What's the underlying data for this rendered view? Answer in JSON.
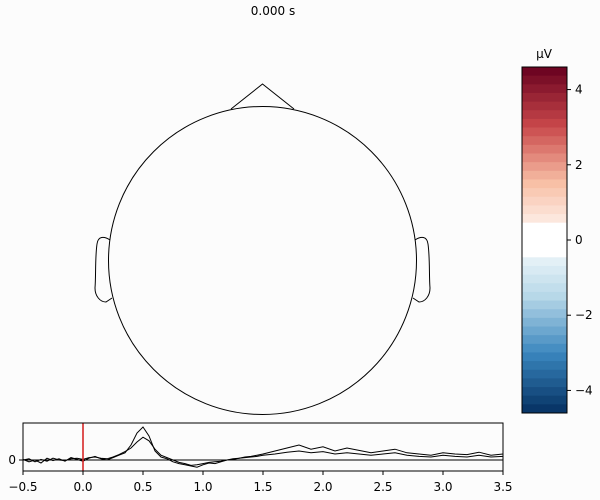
{
  "chart_data": [
    {
      "type": "topomap",
      "title": "0.000 s",
      "colorbar": {
        "unit_label": "µV",
        "range": [
          -4.6,
          4.6
        ],
        "ticks": [
          4,
          2,
          0,
          -2,
          -4
        ],
        "tick_labels": [
          "4",
          "2",
          "0",
          "−2",
          "−4"
        ],
        "colors": {
          "max": "#67001f",
          "high": "#c8474a",
          "mid_high": "#f8bfa5",
          "neutral": "#ffffff",
          "mid_low": "#b6d7e8",
          "low": "#3985bd",
          "min": "#053061"
        }
      }
    },
    {
      "type": "line",
      "xlim": [
        -0.5,
        3.5
      ],
      "x_ticks": [
        -0.5,
        0.0,
        0.5,
        1.0,
        1.5,
        2.0,
        2.5,
        3.0,
        3.5
      ],
      "x_tick_labels": [
        "−0.5",
        "0.0",
        "0.5",
        "1.0",
        "1.5",
        "2.0",
        "2.5",
        "3.0",
        "3.5"
      ],
      "y_ticks": [
        0
      ],
      "y_tick_labels": [
        "0"
      ],
      "grid": false,
      "time_cursor": 0.0,
      "cursor_color": "#d62728",
      "trace_color": "#000000",
      "series": [
        {
          "x": [
            -0.5,
            -0.45,
            -0.4,
            -0.35,
            -0.3,
            -0.25,
            -0.2,
            -0.15,
            -0.1,
            -0.05,
            0.0,
            0.05,
            0.1,
            0.15,
            0.2,
            0.25,
            0.3,
            0.35,
            0.4,
            0.45,
            0.5,
            0.55,
            0.6,
            0.65,
            0.7,
            0.75,
            0.8,
            0.85,
            0.9,
            0.95,
            1.0,
            1.05,
            1.1,
            1.15,
            1.2,
            1.25,
            1.3,
            1.35,
            1.4,
            1.45,
            1.5,
            1.6,
            1.7,
            1.8,
            1.9,
            2.0,
            2.1,
            2.2,
            2.3,
            2.4,
            2.5,
            2.6,
            2.7,
            2.8,
            2.9,
            3.0,
            3.1,
            3.2,
            3.3,
            3.4,
            3.5
          ],
          "values": [
            0.1,
            -0.3,
            0.0,
            -0.5,
            0.3,
            -0.1,
            0.2,
            -0.2,
            0.4,
            0.1,
            -0.2,
            0.3,
            0.6,
            0.2,
            0.0,
            0.4,
            0.8,
            1.2,
            2.5,
            4.5,
            5.5,
            4.0,
            1.5,
            0.5,
            0.2,
            -0.3,
            -0.6,
            -0.8,
            -1.0,
            -1.2,
            -0.8,
            -0.5,
            -0.6,
            -0.3,
            0.0,
            0.2,
            0.3,
            0.5,
            0.6,
            0.8,
            1.0,
            1.5,
            2.0,
            2.5,
            1.8,
            2.2,
            1.5,
            2.0,
            1.6,
            1.2,
            1.5,
            1.8,
            1.2,
            1.0,
            0.8,
            1.2,
            1.0,
            0.9,
            1.3,
            0.8,
            1.0
          ]
        },
        {
          "x": [
            -0.5,
            -0.45,
            -0.4,
            -0.35,
            -0.3,
            -0.25,
            -0.2,
            -0.15,
            -0.1,
            -0.05,
            0.0,
            0.05,
            0.1,
            0.15,
            0.2,
            0.25,
            0.3,
            0.35,
            0.4,
            0.45,
            0.5,
            0.55,
            0.6,
            0.65,
            0.7,
            0.75,
            0.8,
            0.85,
            0.9,
            0.95,
            1.0,
            1.05,
            1.1,
            1.15,
            1.2,
            1.25,
            1.3,
            1.35,
            1.4,
            1.45,
            1.5,
            1.6,
            1.7,
            1.8,
            1.9,
            2.0,
            2.1,
            2.2,
            2.3,
            2.4,
            2.5,
            2.6,
            2.7,
            2.8,
            2.9,
            3.0,
            3.1,
            3.2,
            3.3,
            3.4,
            3.5
          ],
          "values": [
            0.0,
            0.2,
            -0.3,
            0.1,
            -0.2,
            0.3,
            0.0,
            -0.1,
            0.2,
            0.3,
            0.1,
            0.4,
            0.5,
            0.3,
            0.2,
            0.5,
            0.9,
            1.4,
            2.0,
            3.0,
            3.8,
            3.2,
            1.8,
            0.8,
            0.4,
            0.0,
            -0.4,
            -0.6,
            -0.9,
            -0.8,
            -0.6,
            -0.4,
            -0.3,
            -0.2,
            0.0,
            0.1,
            0.3,
            0.4,
            0.5,
            0.6,
            0.8,
            1.0,
            1.3,
            1.5,
            1.2,
            1.4,
            1.0,
            1.2,
            1.0,
            0.8,
            1.0,
            1.2,
            0.8,
            0.6,
            0.5,
            0.8,
            0.6,
            0.5,
            0.8,
            0.5,
            0.6
          ]
        }
      ]
    }
  ]
}
